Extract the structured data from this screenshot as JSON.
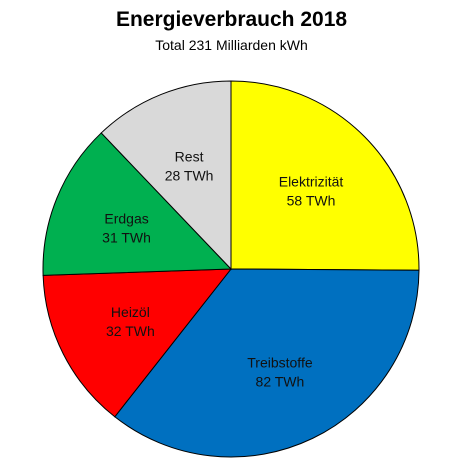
{
  "chart_data": {
    "type": "pie",
    "title": "Energieverbrauch 2018",
    "subtitle": "Total 231 Milliarden kWh",
    "slices": [
      {
        "label": "Elektrizität",
        "value": 58,
        "value_label": "58 TWh",
        "color": "#ffff00"
      },
      {
        "label": "Treibstoffe",
        "value": 82,
        "value_label": "82 TWh",
        "color": "#0070c0"
      },
      {
        "label": "Heizöl",
        "value": 32,
        "value_label": "32 TWh",
        "color": "#ff0000"
      },
      {
        "label": "Erdgas",
        "value": 31,
        "value_label": "31 TWh",
        "color": "#00b050"
      },
      {
        "label": "Rest",
        "value": 28,
        "value_label": "28 TWh",
        "color": "#d9d9d9"
      }
    ],
    "start": "12 o'clock",
    "direction": "clockwise",
    "legend": "none"
  }
}
